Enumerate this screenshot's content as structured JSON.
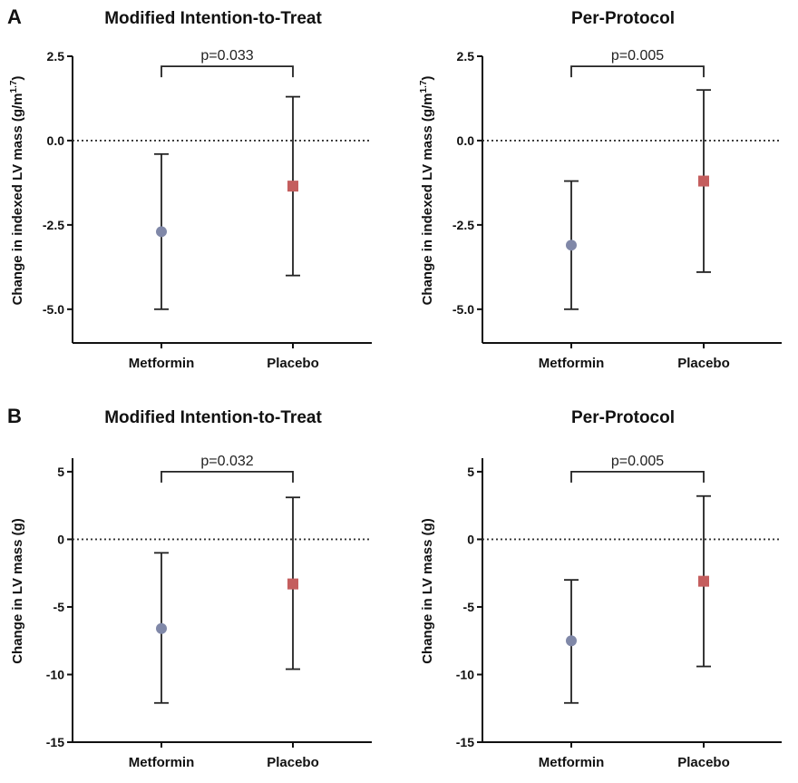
{
  "figure": {
    "panel_labels": [
      "A",
      "B"
    ]
  },
  "colors": {
    "metformin": "#8088a8",
    "placebo": "#c45e5e",
    "axis": "#111111"
  },
  "chart_data": [
    {
      "type": "errorbar",
      "panel": "A",
      "title": "Modified Intention-to-Treat",
      "ylabel_main": "Change in indexed LV mass (g/m",
      "ylabel_sup": "1.7",
      "ylabel_tail": ")",
      "ylim": [
        -6,
        2.5
      ],
      "yticks": [
        2.5,
        0,
        -2.5,
        -5
      ],
      "ytick_labels": [
        "2.5",
        "0.0",
        "-2.5",
        "-5.0"
      ],
      "reference_line": 0,
      "categories": [
        "Metformin",
        "Placebo"
      ],
      "values": [
        -2.7,
        -1.35
      ],
      "lower": [
        -5.0,
        -4.0
      ],
      "upper": [
        -0.4,
        1.3
      ],
      "annotation": "p=0.033",
      "bracket_y": 2.2
    },
    {
      "type": "errorbar",
      "panel": "A",
      "title": "Per-Protocol",
      "ylabel_main": "Change in indexed LV mass (g/m",
      "ylabel_sup": "1.7",
      "ylabel_tail": ")",
      "ylim": [
        -6,
        2.5
      ],
      "yticks": [
        2.5,
        0,
        -2.5,
        -5
      ],
      "ytick_labels": [
        "2.5",
        "0.0",
        "-2.5",
        "-5.0"
      ],
      "reference_line": 0,
      "categories": [
        "Metformin",
        "Placebo"
      ],
      "values": [
        -3.1,
        -1.2
      ],
      "lower": [
        -5.0,
        -3.9
      ],
      "upper": [
        -1.2,
        1.5
      ],
      "annotation": "p=0.005",
      "bracket_y": 2.2
    },
    {
      "type": "errorbar",
      "panel": "B",
      "title": "Modified Intention-to-Treat",
      "ylabel_main": "Change in LV mass (g)",
      "ylabel_sup": "",
      "ylabel_tail": "",
      "ylim": [
        -15,
        6
      ],
      "yticks": [
        5,
        0,
        -5,
        -10,
        -15
      ],
      "ytick_labels": [
        "5",
        "0",
        "-5",
        "-10",
        "-15"
      ],
      "reference_line": 0,
      "categories": [
        "Metformin",
        "Placebo"
      ],
      "values": [
        -6.6,
        -3.3
      ],
      "lower": [
        -12.1,
        -9.6
      ],
      "upper": [
        -1.0,
        3.1
      ],
      "annotation": "p=0.032",
      "bracket_y": 5.0
    },
    {
      "type": "errorbar",
      "panel": "B",
      "title": "Per-Protocol",
      "ylabel_main": "Change in LV mass (g)",
      "ylabel_sup": "",
      "ylabel_tail": "",
      "ylim": [
        -15,
        6
      ],
      "yticks": [
        5,
        0,
        -5,
        -10,
        -15
      ],
      "ytick_labels": [
        "5",
        "0",
        "-5",
        "-10",
        "-15"
      ],
      "reference_line": 0,
      "categories": [
        "Metformin",
        "Placebo"
      ],
      "values": [
        -7.5,
        -3.1
      ],
      "lower": [
        -12.1,
        -9.4
      ],
      "upper": [
        -3.0,
        3.2
      ],
      "annotation": "p=0.005",
      "bracket_y": 5.0
    }
  ]
}
